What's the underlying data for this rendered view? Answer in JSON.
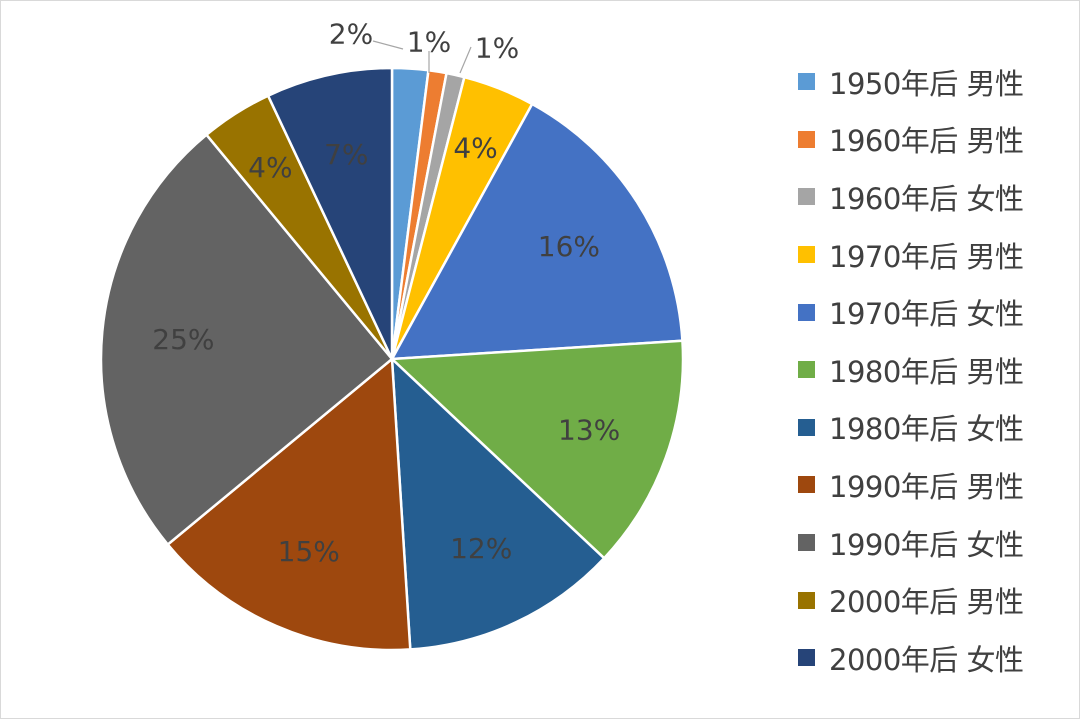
{
  "chart_data": {
    "type": "pie",
    "title": "",
    "legend_position": "right",
    "slices": [
      {
        "name": "1950年后 男性",
        "value": 2,
        "label": "2%",
        "color": "#5B9BD5"
      },
      {
        "name": "1960年后 男性",
        "value": 1,
        "label": "1%",
        "color": "#ED7D31"
      },
      {
        "name": "1960年后 女性",
        "value": 1,
        "label": "1%",
        "color": "#A5A5A5"
      },
      {
        "name": "1970年后 男性",
        "value": 4,
        "label": "4%",
        "color": "#FFC000"
      },
      {
        "name": "1970年后 女性",
        "value": 16,
        "label": "16%",
        "color": "#4472C4"
      },
      {
        "name": "1980年后 男性",
        "value": 13,
        "label": "13%",
        "color": "#70AD47"
      },
      {
        "name": "1980年后 女性",
        "value": 12,
        "label": "12%",
        "color": "#255E91"
      },
      {
        "name": "1990年后 男性",
        "value": 15,
        "label": "15%",
        "color": "#9E480E"
      },
      {
        "name": "1990年后 女性",
        "value": 25,
        "label": "25%",
        "color": "#636363"
      },
      {
        "name": "2000年后 男性",
        "value": 4,
        "label": "4%",
        "color": "#997300"
      },
      {
        "name": "2000年后 女性",
        "value": 7,
        "label": "7%",
        "color": "#264478"
      }
    ]
  }
}
